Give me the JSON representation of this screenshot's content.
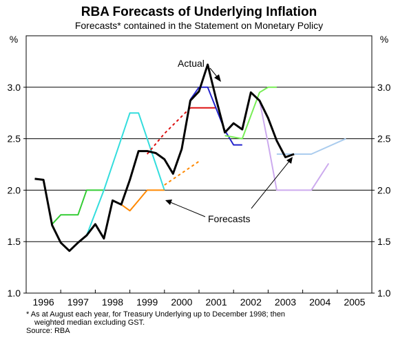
{
  "chart_data": {
    "type": "line",
    "title": "RBA Forecasts of Underlying Inflation",
    "subtitle": "Forecasts* contained in the Statement on Monetary Policy",
    "ylabel_left": "%",
    "ylabel_right": "%",
    "ylim": [
      1.0,
      3.5
    ],
    "yticks": [
      "1.0",
      "1.5",
      "2.0",
      "2.5",
      "3.0"
    ],
    "xlim": [
      1995.75,
      2005.75
    ],
    "xticks": [
      "1996",
      "1997",
      "1998",
      "1999",
      "2000",
      "2001",
      "2002",
      "2003",
      "2004",
      "2005"
    ],
    "grid": "horizontal",
    "annotations": [
      "Actual",
      "Forecasts"
    ],
    "series": [
      {
        "name": "Actual",
        "color": "#000000",
        "points": [
          [
            1996.0,
            2.11
          ],
          [
            1996.25,
            2.1
          ],
          [
            1996.5,
            1.66
          ],
          [
            1996.75,
            1.49
          ],
          [
            1997.0,
            1.41
          ],
          [
            1997.25,
            1.49
          ],
          [
            1997.5,
            1.56
          ],
          [
            1997.75,
            1.67
          ],
          [
            1998.0,
            1.53
          ],
          [
            1998.25,
            1.9
          ],
          [
            1998.5,
            1.86
          ],
          [
            1998.75,
            2.1
          ],
          [
            1999.0,
            2.38
          ],
          [
            1999.25,
            2.38
          ],
          [
            1999.5,
            2.36
          ],
          [
            1999.75,
            2.3
          ],
          [
            2000.0,
            2.16
          ],
          [
            2000.25,
            2.4
          ],
          [
            2000.5,
            2.87
          ],
          [
            2000.75,
            2.96
          ],
          [
            2001.0,
            3.22
          ],
          [
            2001.25,
            2.88
          ],
          [
            2001.5,
            2.56
          ],
          [
            2001.75,
            2.65
          ],
          [
            2002.0,
            2.59
          ],
          [
            2002.25,
            2.95
          ],
          [
            2002.5,
            2.87
          ],
          [
            2002.75,
            2.7
          ],
          [
            2003.0,
            2.48
          ],
          [
            2003.25,
            2.32
          ],
          [
            2003.5,
            2.35
          ]
        ]
      },
      {
        "color": "#33cc33",
        "dash": "",
        "points": [
          [
            1996.5,
            1.67
          ],
          [
            1996.75,
            1.76
          ],
          [
            1997.25,
            1.76
          ],
          [
            1997.5,
            2.0
          ],
          [
            1998.0,
            2.0
          ]
        ]
      },
      {
        "color": "#33dddd",
        "dash": "",
        "points": [
          [
            1997.5,
            1.56
          ],
          [
            1998.0,
            2.0
          ],
          [
            1998.5,
            2.5
          ],
          [
            1998.75,
            2.75
          ],
          [
            1999.0,
            2.75
          ],
          [
            1999.5,
            2.25
          ],
          [
            1999.75,
            2.0
          ]
        ]
      },
      {
        "color": "#ff8800",
        "dash": "",
        "points": [
          [
            1998.5,
            1.86
          ],
          [
            1998.75,
            1.8
          ],
          [
            1999.0,
            1.9
          ],
          [
            1999.25,
            2.0
          ],
          [
            1999.75,
            2.0
          ]
        ]
      },
      {
        "color": "#ff8800",
        "dash": "4,4",
        "points": [
          [
            1999.75,
            2.05
          ],
          [
            2000.75,
            2.28
          ]
        ]
      },
      {
        "color": "#dd1111",
        "dash": "4,4",
        "points": [
          [
            1999.25,
            2.35
          ],
          [
            1999.75,
            2.55
          ],
          [
            2000.5,
            2.8
          ]
        ]
      },
      {
        "color": "#dd1111",
        "dash": "",
        "points": [
          [
            2000.5,
            2.8
          ],
          [
            2001.25,
            2.8
          ]
        ]
      },
      {
        "color": "#2222cc",
        "dash": "",
        "points": [
          [
            2000.5,
            2.88
          ],
          [
            2000.75,
            3.0
          ],
          [
            2001.0,
            3.0
          ],
          [
            2001.5,
            2.58
          ],
          [
            2001.75,
            2.44
          ],
          [
            2002.0,
            2.44
          ]
        ]
      },
      {
        "color": "#77ee55",
        "dash": "",
        "points": [
          [
            2001.5,
            2.53
          ],
          [
            2002.0,
            2.5
          ],
          [
            2002.5,
            2.95
          ],
          [
            2002.75,
            3.0
          ],
          [
            2003.0,
            3.0
          ]
        ]
      },
      {
        "color": "#ccaaee",
        "dash": "",
        "points": [
          [
            2002.5,
            2.87
          ],
          [
            2002.75,
            2.45
          ],
          [
            2003.0,
            2.0
          ],
          [
            2003.75,
            2.0
          ],
          [
            2004.0,
            2.0
          ],
          [
            2004.5,
            2.26
          ]
        ]
      },
      {
        "color": "#aaccee",
        "dash": "",
        "points": [
          [
            2003.0,
            2.35
          ],
          [
            2004.0,
            2.35
          ],
          [
            2005.0,
            2.5
          ]
        ]
      }
    ]
  },
  "footnote": {
    "line1": "*  As at August each year, for Treasury Underlying up to December 1998; then",
    "line2": "weighted median excluding GST.",
    "source": "Source: RBA"
  }
}
